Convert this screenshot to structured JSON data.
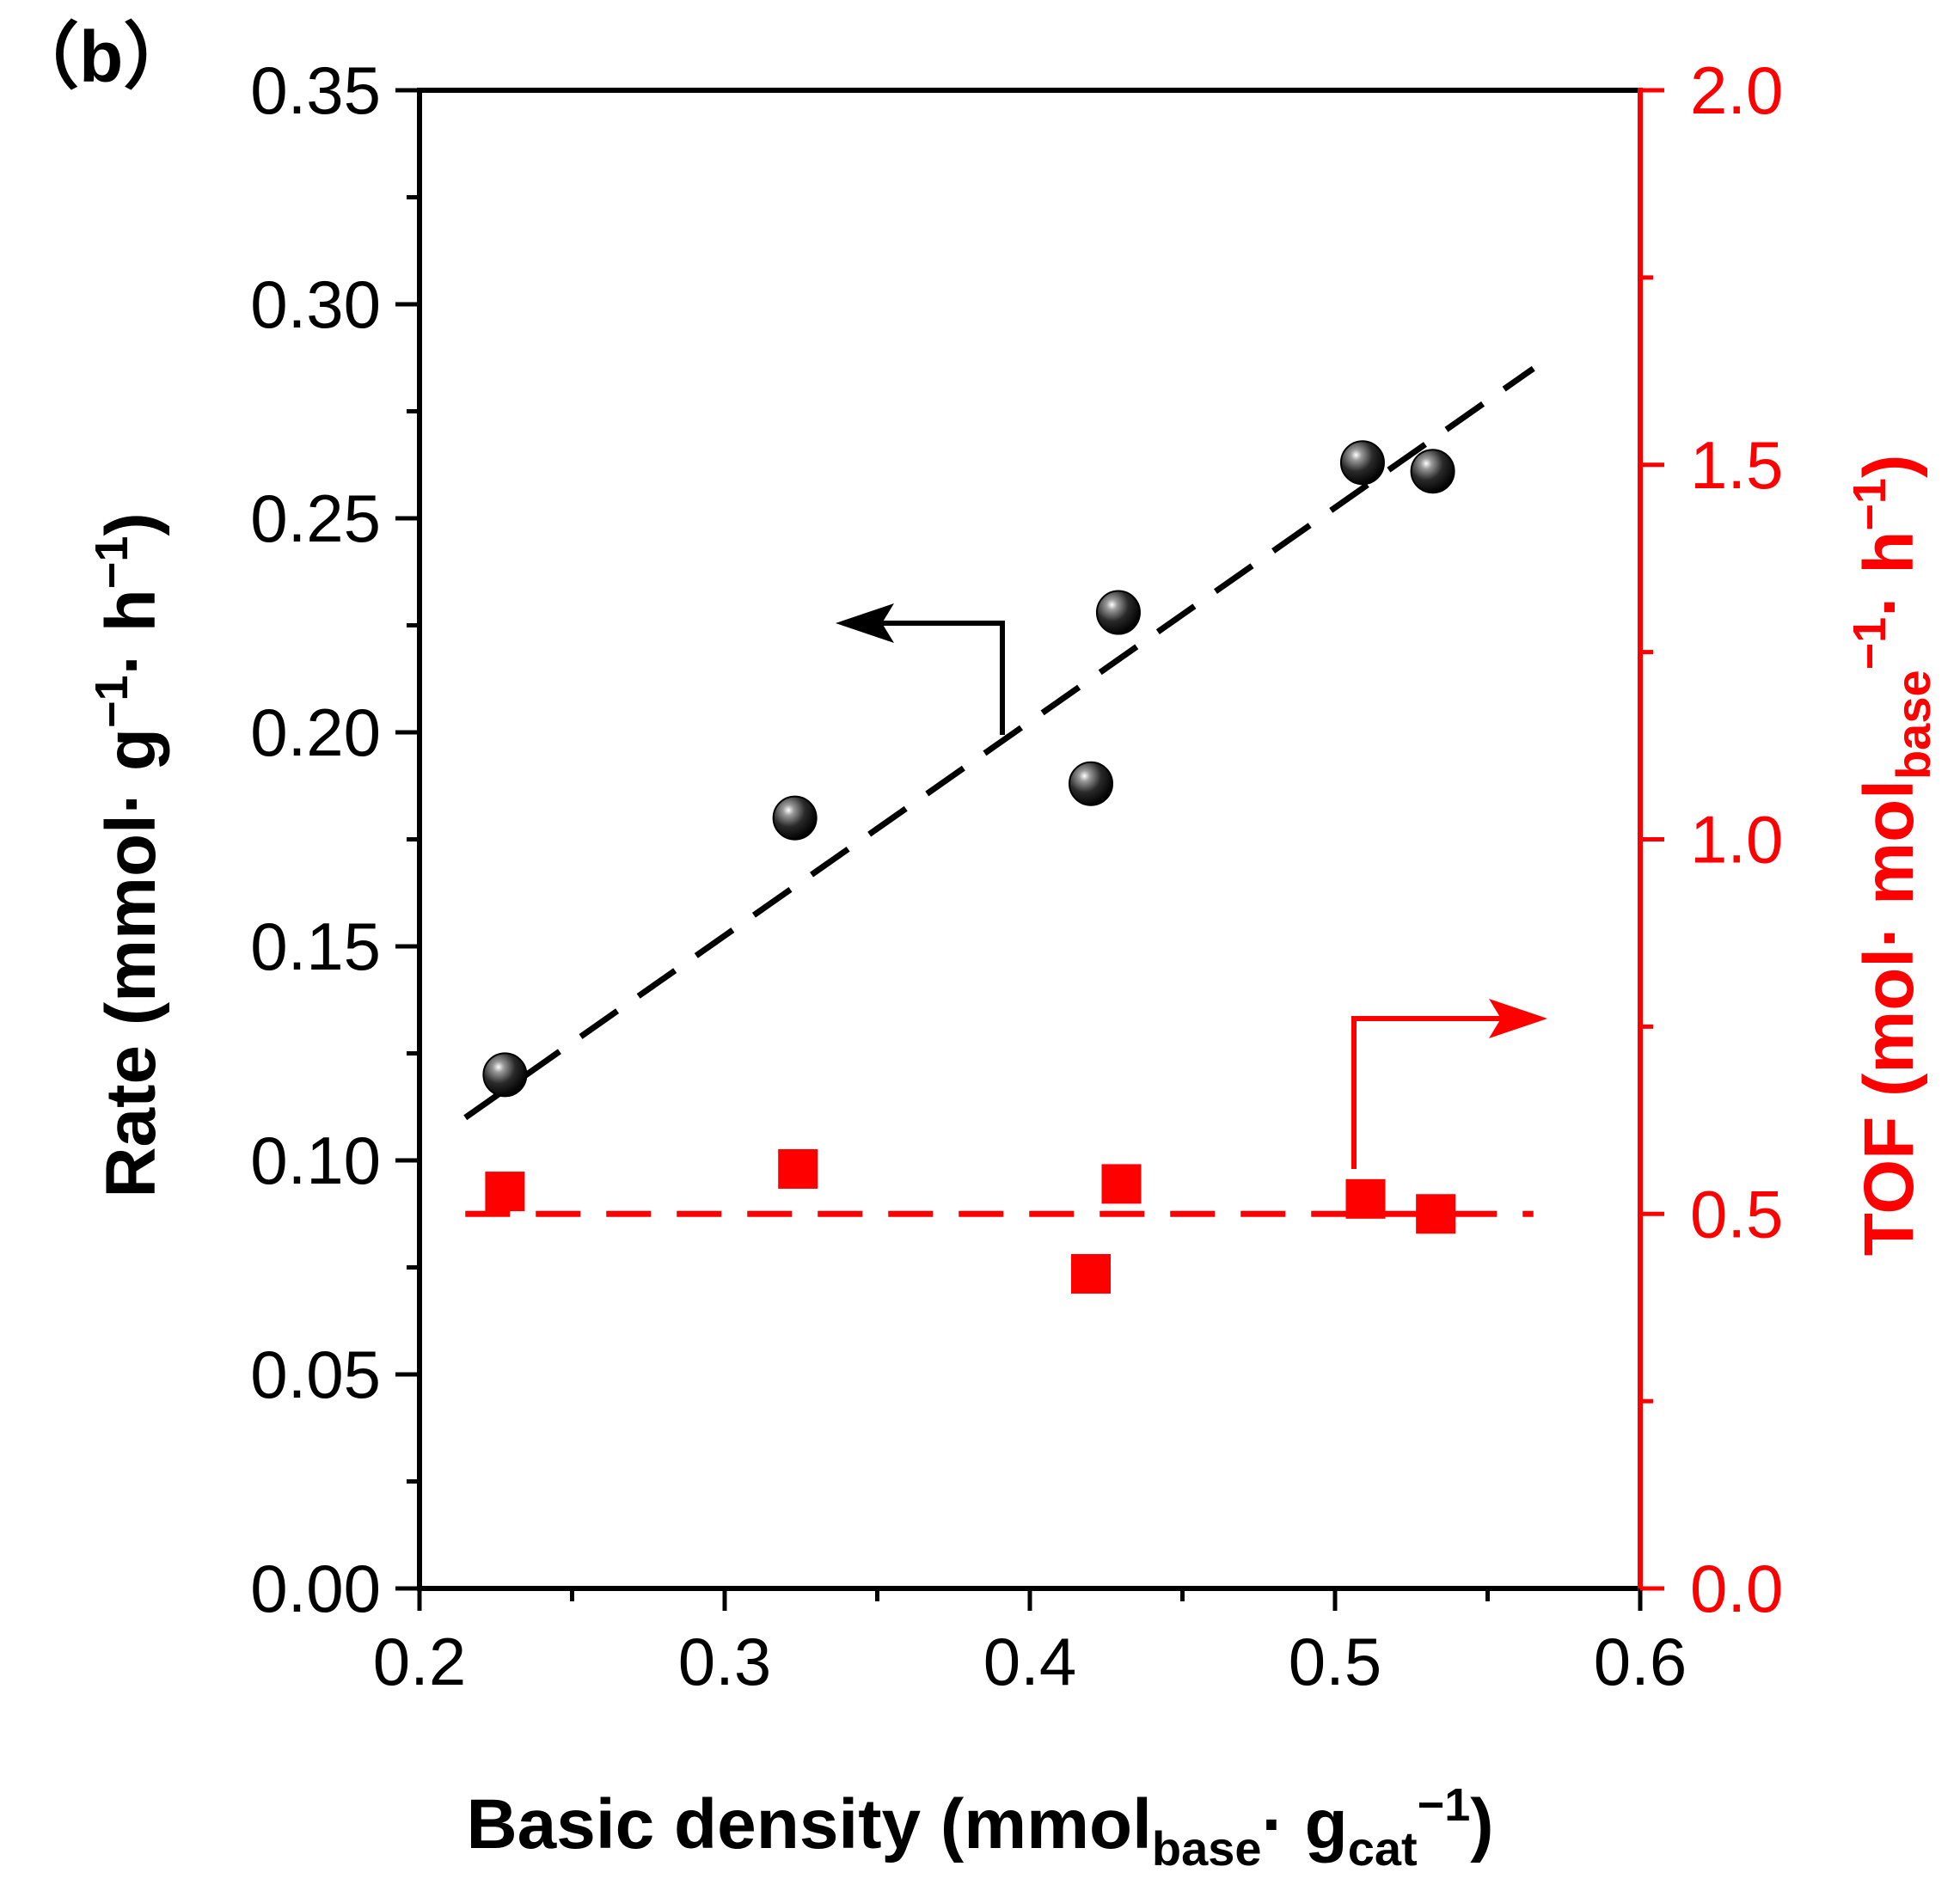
{
  "chart_data": {
    "type": "scatter",
    "panel_label_open": "（",
    "panel_label_letter": "b",
    "panel_label_close": "）",
    "xlabel": {
      "main": "Basic density (mmol",
      "sub1": "base",
      "mid": "· g",
      "sub2": "cat",
      "sup": "−1",
      "close": ")"
    },
    "ylabel_left": {
      "main": "Rate (mmol· g",
      "sup1": "−1",
      "mid": "· h",
      "sup2": "−1",
      "close": ")"
    },
    "ylabel_right": {
      "main": "TOF (mol· mol",
      "sub": "base",
      "sup1": "−1",
      "mid": "· h",
      "sup2": "−1",
      "close": ")"
    },
    "xlim": [
      0.2,
      0.6
    ],
    "ylim_left": [
      0,
      0.35
    ],
    "ylim_right": [
      0,
      2.0
    ],
    "x_ticks": [
      "0.2",
      "0.3",
      "0.4",
      "0.5",
      "0.6"
    ],
    "y_left_ticks": [
      "0.00",
      "0.05",
      "0.10",
      "0.15",
      "0.20",
      "0.25",
      "0.30",
      "0.35"
    ],
    "y_right_ticks": [
      "0.0",
      "0.5",
      "1.0",
      "1.5",
      "2.0"
    ],
    "series": [
      {
        "name": "Rate",
        "axis": "left",
        "marker": "sphere",
        "color": "#000000",
        "x": [
          0.228,
          0.323,
          0.42,
          0.429,
          0.509,
          0.532
        ],
        "y": [
          0.12,
          0.18,
          0.188,
          0.228,
          0.263,
          0.261
        ],
        "fit": {
          "x": [
            0.215,
            0.565
          ],
          "y": [
            0.11,
            0.285
          ]
        }
      },
      {
        "name": "TOF",
        "axis": "right",
        "marker": "square",
        "color": "#ff0000",
        "x": [
          0.228,
          0.324,
          0.42,
          0.43,
          0.51,
          0.533
        ],
        "y": [
          0.53,
          0.56,
          0.42,
          0.54,
          0.52,
          0.5
        ],
        "fit": {
          "x": [
            0.215,
            0.565
          ],
          "y": [
            0.5,
            0.5
          ]
        }
      }
    ],
    "annotations": [
      {
        "type": "arrow",
        "direction": "left",
        "target_axis": "left",
        "color": "#000000"
      },
      {
        "type": "arrow",
        "direction": "right",
        "target_axis": "right",
        "color": "#ff0000"
      }
    ]
  }
}
